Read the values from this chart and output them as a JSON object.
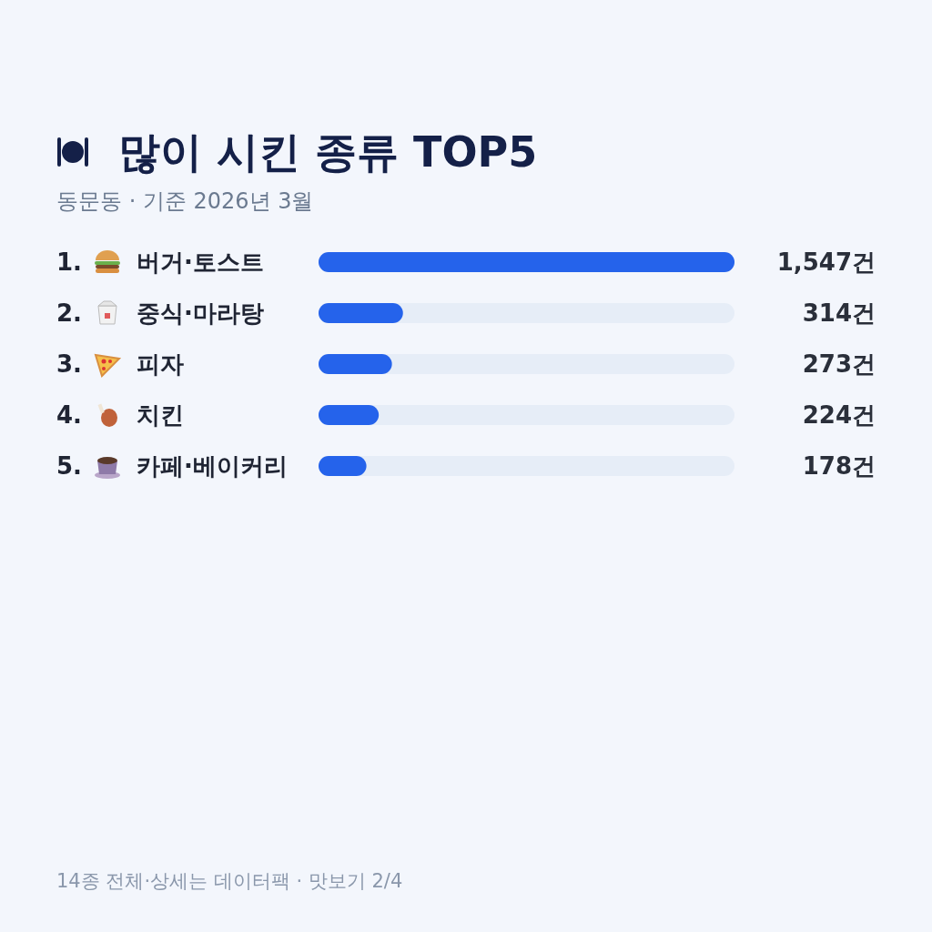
{
  "chart_data": {
    "type": "bar",
    "orientation": "horizontal",
    "title": "많이 시킨 종류 TOP5",
    "subtitle": "동문동 · 기준 2026년 3월",
    "categories": [
      "1. 버거·토스트",
      "2. 중식·마라탕",
      "3. 피자",
      "4. 치킨",
      "5. 카페·베이커리"
    ],
    "values": [
      1547,
      314,
      273,
      224,
      178
    ],
    "value_labels": [
      "1,547건",
      "314건",
      "273건",
      "224건",
      "178건"
    ],
    "color": "#2563eb",
    "xlim": [
      0,
      1547
    ],
    "tick_labels": "y",
    "annotations": [
      "14종 전체·상세는 데이터팩 · 맛보기 2/4"
    ]
  }
}
